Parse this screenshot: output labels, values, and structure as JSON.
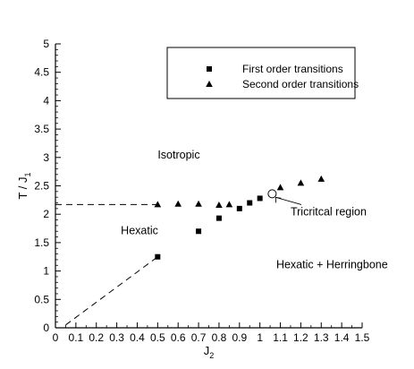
{
  "chart_data": {
    "type": "scatter",
    "xlabel": "J",
    "xlabel_sub": "2",
    "ylabel": "T / J",
    "ylabel_sub": "1",
    "xlim": [
      0,
      1.5
    ],
    "ylim": [
      0,
      5
    ],
    "xticks": [
      "0",
      "0.1",
      "0.2",
      "0.3",
      "0.4",
      "0.5",
      "0.6",
      "0.7",
      "0.8",
      "0.9",
      "1",
      "1.1",
      "1.2",
      "1.3",
      "1.4",
      "1.5"
    ],
    "yticks": [
      "0",
      "0.5",
      "1",
      "1.5",
      "2",
      "2.5",
      "3",
      "3.5",
      "4",
      "4.5",
      "5"
    ],
    "grid": false,
    "legend_position": "top-right",
    "series": [
      {
        "name": "First order transitions",
        "marker": "square",
        "points": [
          [
            0.5,
            1.25
          ],
          [
            0.7,
            1.7
          ],
          [
            0.8,
            1.93
          ],
          [
            0.9,
            2.1
          ],
          [
            0.95,
            2.2
          ],
          [
            1.0,
            2.28
          ]
        ]
      },
      {
        "name": "Second order transitions",
        "marker": "triangle",
        "points": [
          [
            0.5,
            2.17
          ],
          [
            0.6,
            2.18
          ],
          [
            0.7,
            2.18
          ],
          [
            0.8,
            2.16
          ],
          [
            0.85,
            2.17
          ],
          [
            1.1,
            2.47
          ],
          [
            1.2,
            2.55
          ],
          [
            1.3,
            2.62
          ]
        ]
      }
    ],
    "dashed_lines": [
      [
        [
          0,
          2.17
        ],
        [
          0.5,
          2.17
        ]
      ],
      [
        [
          0.05,
          0.05
        ],
        [
          0.5,
          1.25
        ]
      ]
    ],
    "annotations": [
      {
        "text": "Isotropic",
        "x": 0.5,
        "y": 2.98
      },
      {
        "text": "Hexatic",
        "x": 0.32,
        "y": 1.65
      },
      {
        "text": "Hexatic + Herringbone",
        "x": 1.08,
        "y": 1.05
      },
      {
        "text": "Tricritcal region",
        "x": 1.15,
        "y": 1.98,
        "marker_at": [
          1.06,
          2.36
        ]
      }
    ]
  }
}
